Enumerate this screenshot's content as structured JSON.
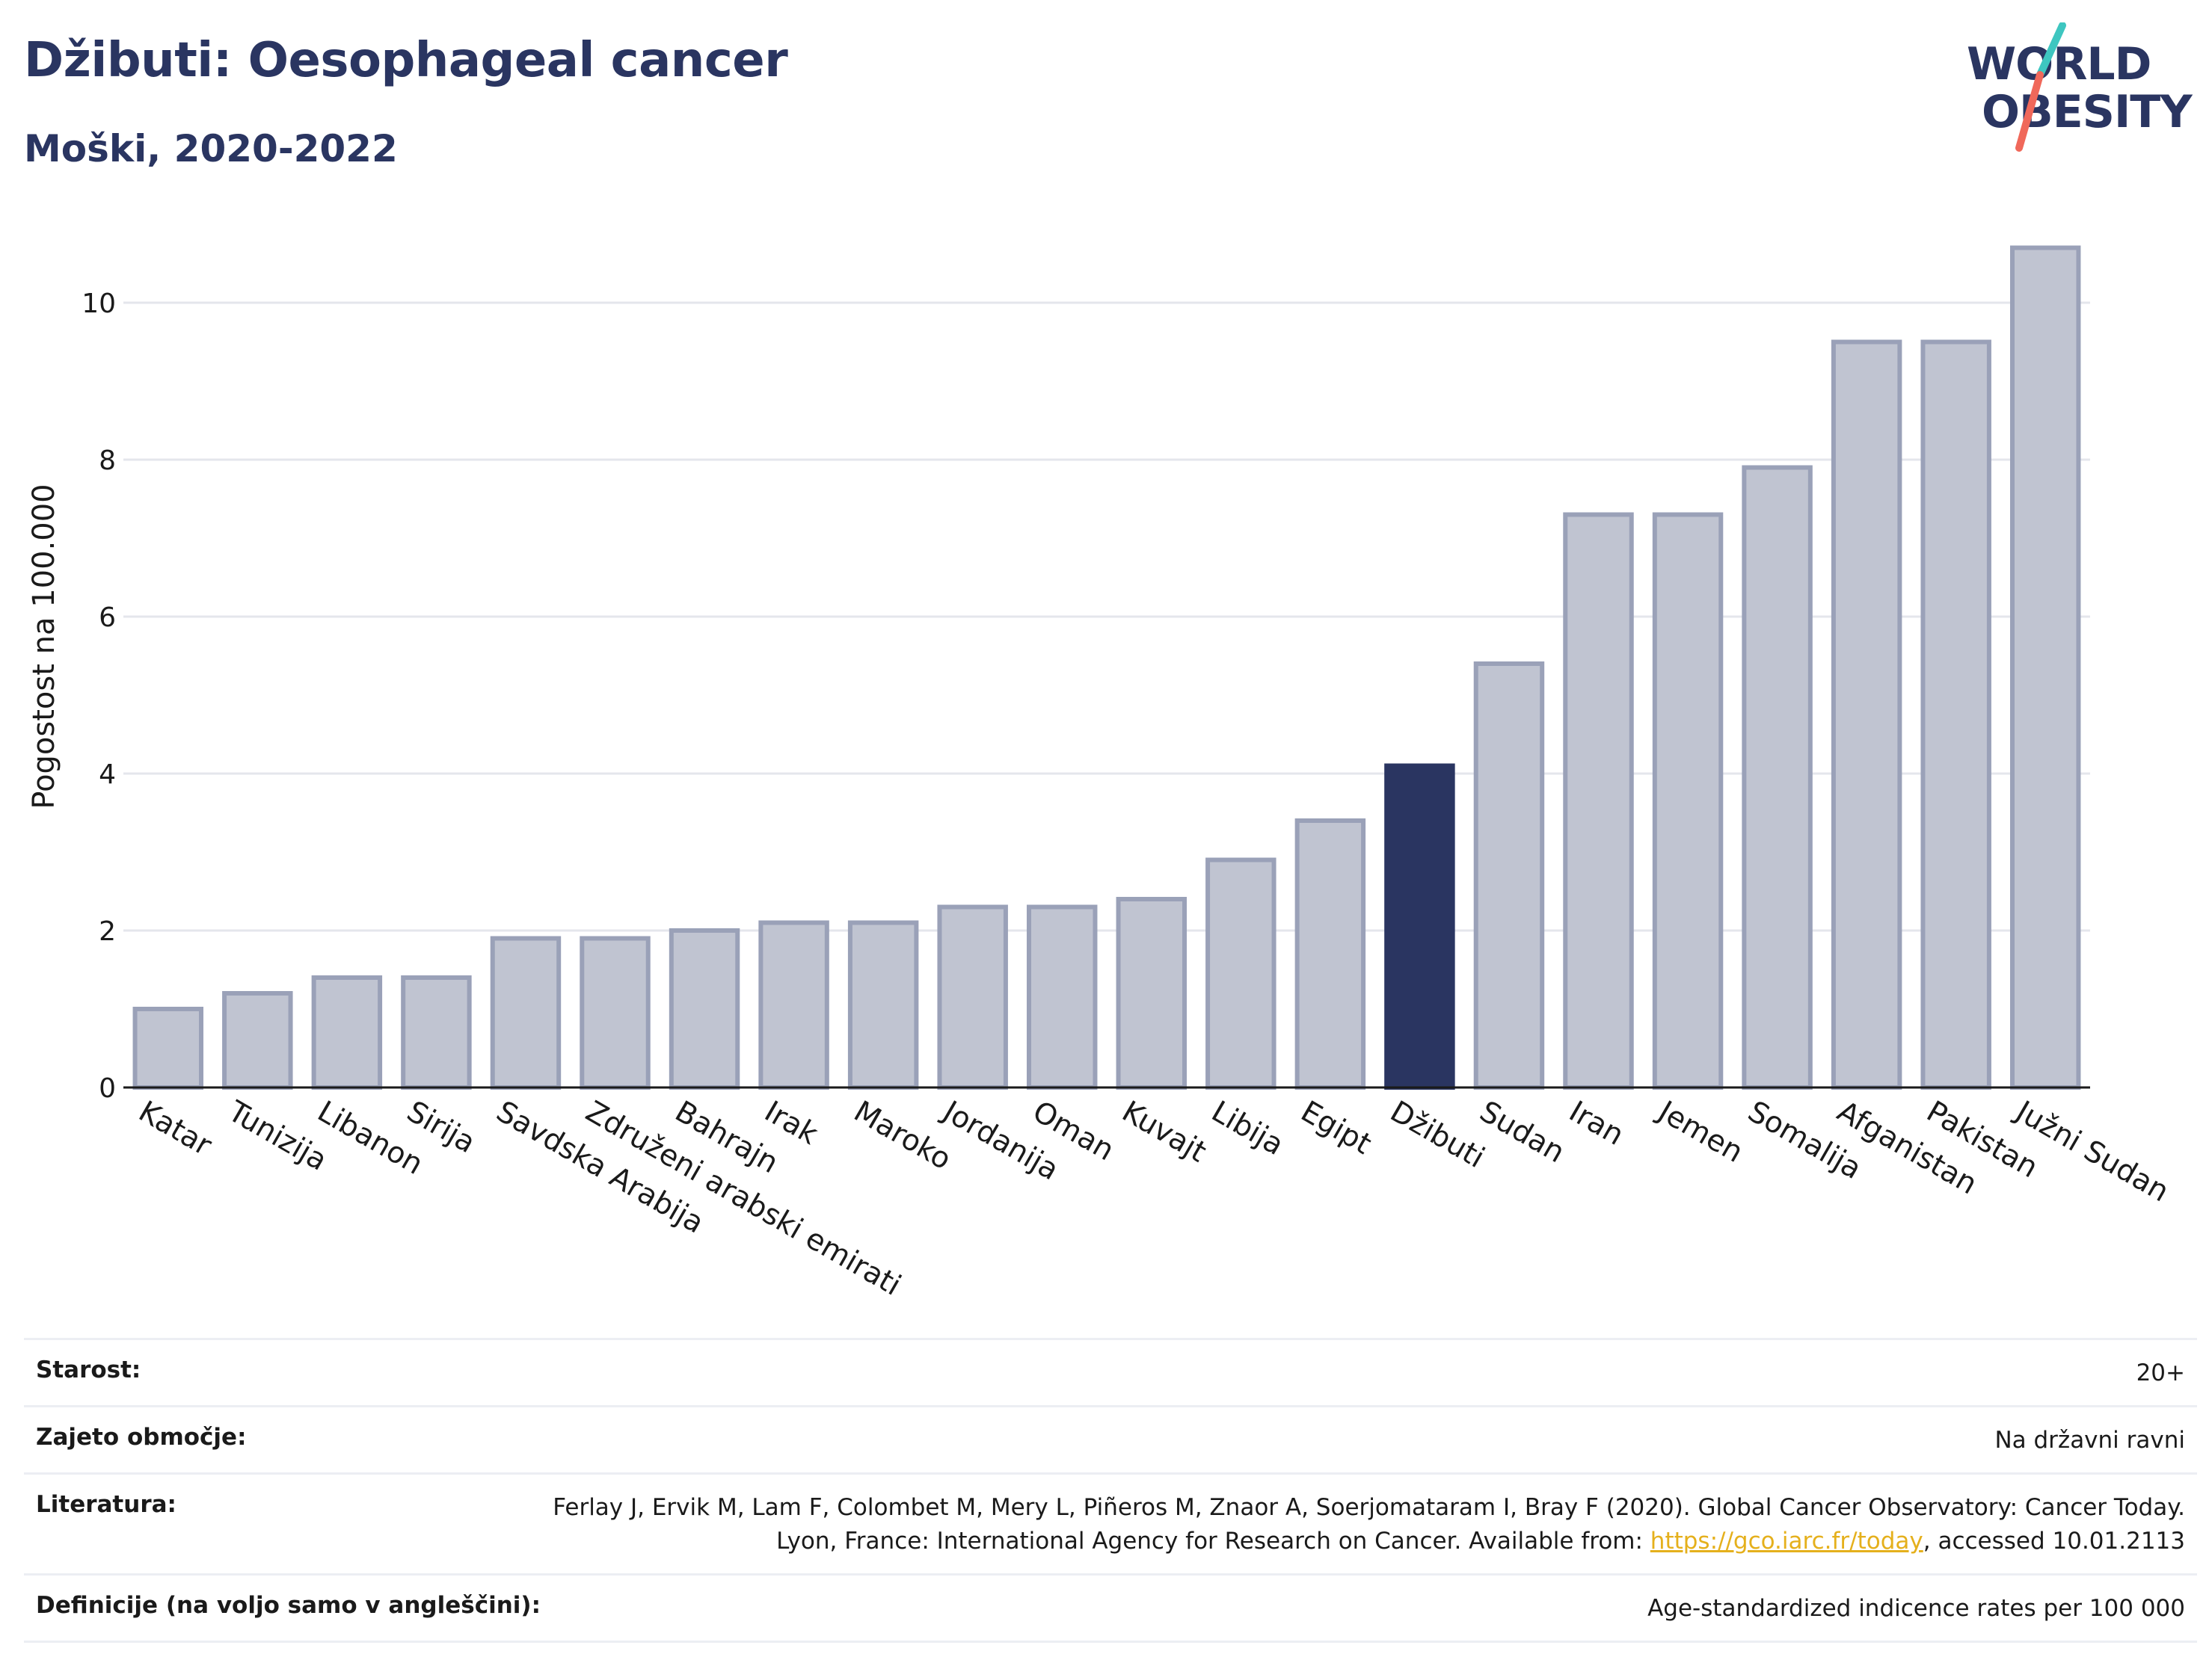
{
  "header": {
    "title": "Džibuti: Oesophageal cancer",
    "subtitle": "Moški, 2020-2022"
  },
  "logo": {
    "line1": "WORLD",
    "line2": "OBESITY",
    "slash_colors": [
      "#3ec6c0",
      "#f0685a"
    ]
  },
  "colors": {
    "bar_default_fill": "#c0c4d1",
    "bar_default_stroke": "#9aa1b8",
    "bar_highlight": "#2a3561",
    "grid": "#e4e6ec",
    "link": "#e5b01c"
  },
  "chart_data": {
    "type": "bar",
    "title": "Džibuti: Oesophageal cancer",
    "subtitle": "Moški, 2020-2022",
    "xlabel": "",
    "ylabel": "Pogostost na 100.000",
    "ylim": [
      0,
      11
    ],
    "yticks": [
      0,
      2,
      4,
      6,
      8,
      10
    ],
    "grid": true,
    "highlight": "Džibuti",
    "categories": [
      "Katar",
      "Tunizija",
      "Libanon",
      "Sirija",
      "Savdska Arabija",
      "Združeni arabski emirati",
      "Bahrajn",
      "Irak",
      "Maroko",
      "Jordanija",
      "Oman",
      "Kuvajt",
      "Libija",
      "Egipt",
      "Džibuti",
      "Sudan",
      "Iran",
      "Jemen",
      "Somalija",
      "Afganistan",
      "Pakistan",
      "Južni Sudan"
    ],
    "values": [
      1.0,
      1.2,
      1.4,
      1.4,
      1.9,
      1.9,
      2.0,
      2.1,
      2.1,
      2.3,
      2.3,
      2.4,
      2.9,
      3.4,
      4.1,
      5.4,
      7.3,
      7.3,
      7.9,
      9.5,
      9.5,
      10.7
    ]
  },
  "meta": {
    "age_label": "Starost:",
    "age_value": "20+",
    "coverage_label": "Zajeto območje:",
    "coverage_value": "Na državni ravni",
    "references_label": "Literatura:",
    "references_text_1": "Ferlay J, Ervik M, Lam F, Colombet M, Mery L, Piñeros M, Znaor A, Soerjomataram I, Bray F (2020). Global Cancer Observatory: Cancer Today. Lyon, France: International Agency for Research on Cancer. Available from: ",
    "references_link": "https://gco.iarc.fr/today",
    "references_text_2": ", accessed 10.01.2113",
    "definitions_label": "Definicije (na voljo samo v angleščini):",
    "definitions_value": "Age-standardized indicence rates per 100 000"
  }
}
